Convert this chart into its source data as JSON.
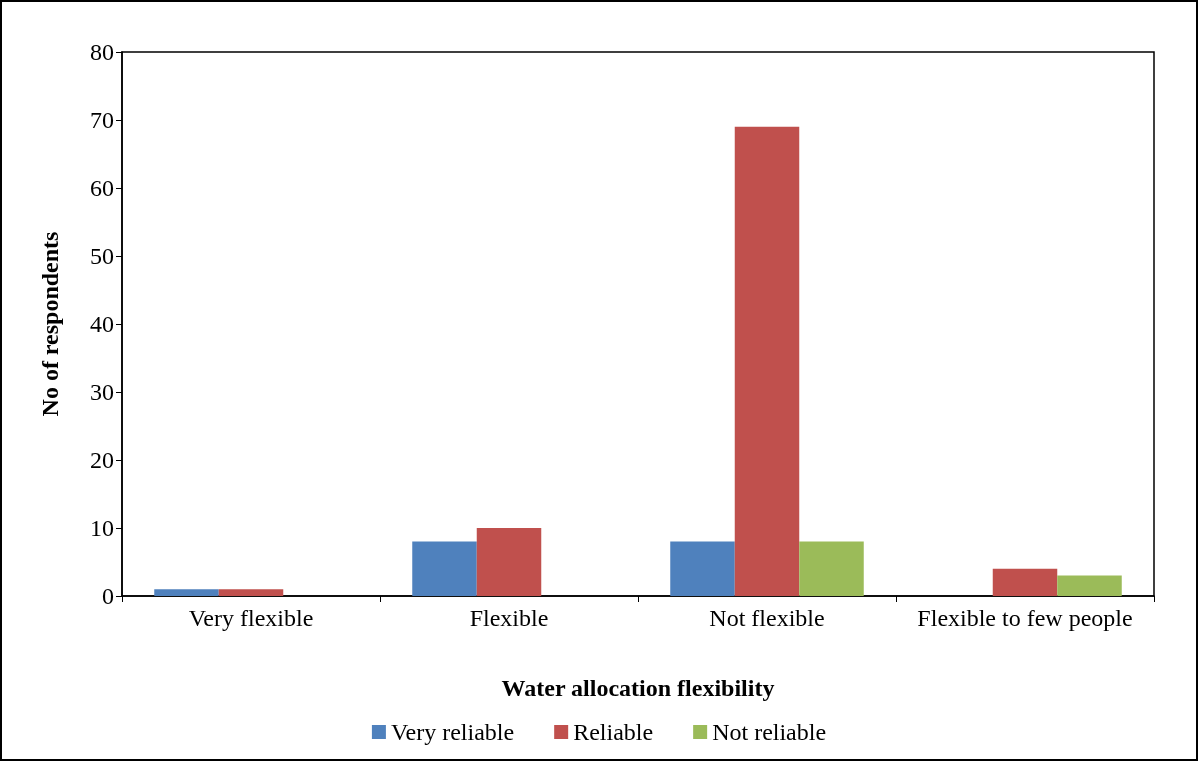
{
  "chart_data": {
    "type": "bar",
    "xlabel": "Water allocation flexibility",
    "ylabel": "No of respondents",
    "categories": [
      "Very flexible",
      "Flexible",
      "Not flexible",
      "Flexible to few people"
    ],
    "series": [
      {
        "name": "Very reliable",
        "color": "#4f81bd",
        "values": [
          1,
          8,
          8,
          0
        ]
      },
      {
        "name": "Reliable",
        "color": "#c0504d",
        "values": [
          1,
          10,
          69,
          4
        ]
      },
      {
        "name": "Not reliable",
        "color": "#9bbb59",
        "values": [
          0,
          0,
          8,
          3
        ]
      }
    ],
    "ylim": [
      0,
      80
    ],
    "yticks": [
      0,
      10,
      20,
      30,
      40,
      50,
      60,
      70,
      80
    ],
    "grid": false,
    "legend": "bottom"
  }
}
